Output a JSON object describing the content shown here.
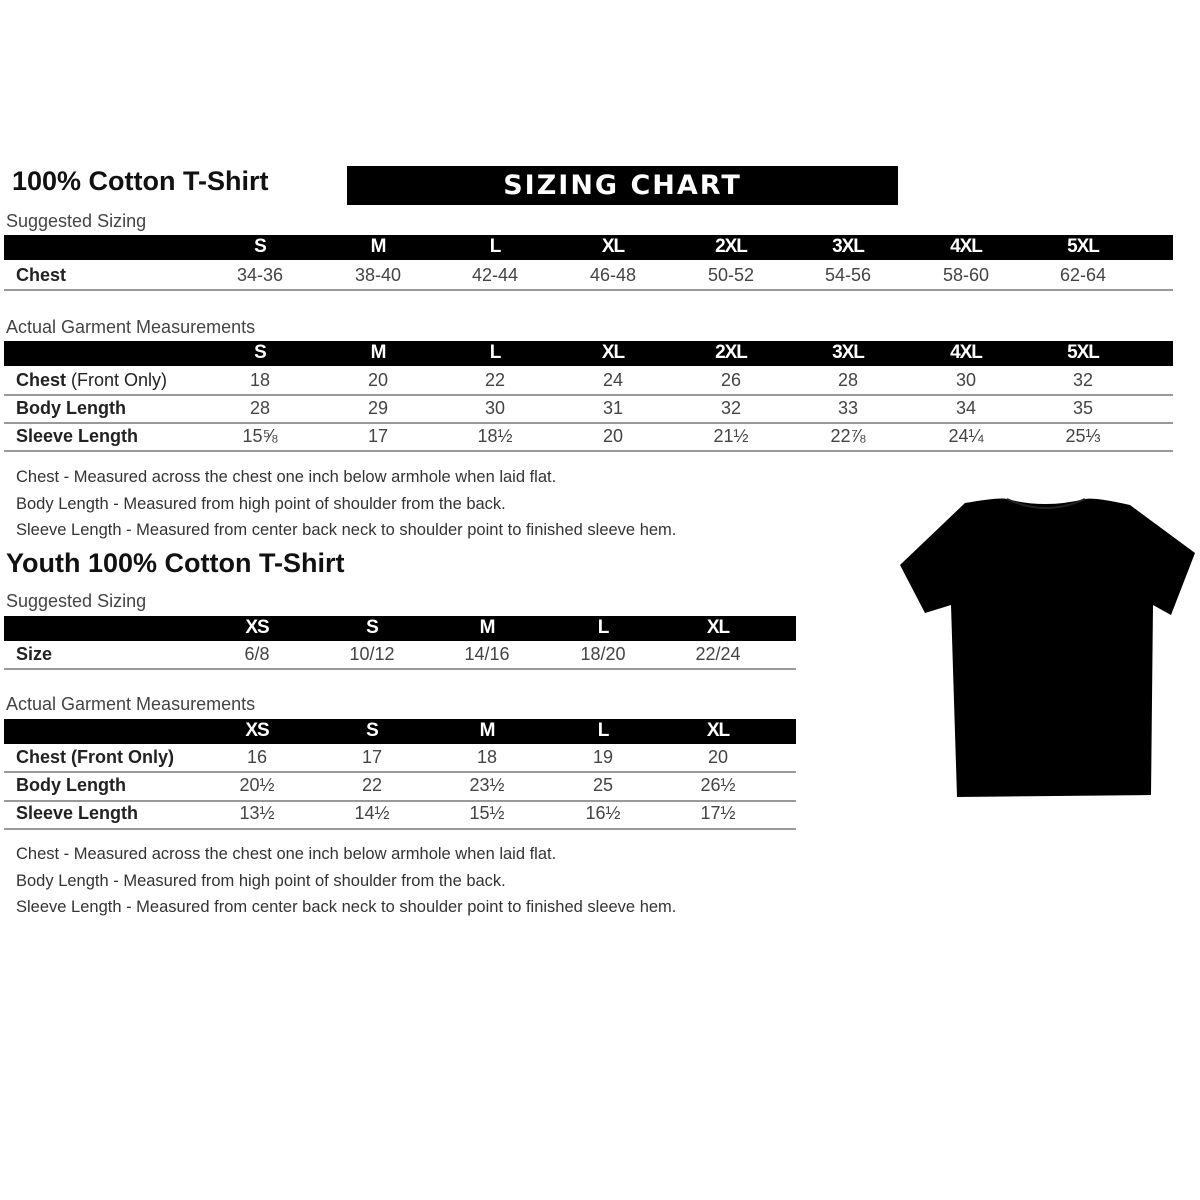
{
  "adult": {
    "title": "100% Cotton T-Shirt",
    "banner": "SIZING CHART",
    "suggested": {
      "label": "Suggested Sizing",
      "sizes": [
        "S",
        "M",
        "L",
        "XL",
        "2XL",
        "3XL",
        "4XL",
        "5XL"
      ],
      "rows": [
        {
          "label": "Chest",
          "values": [
            "34-36",
            "38-40",
            "42-44",
            "46-48",
            "50-52",
            "54-56",
            "58-60",
            "62-64"
          ]
        }
      ]
    },
    "actual": {
      "label": "Actual Garment Measurements",
      "sizes": [
        "S",
        "M",
        "L",
        "XL",
        "2XL",
        "3XL",
        "4XL",
        "5XL"
      ],
      "rows": [
        {
          "label": "Chest",
          "label_suffix": " (Front Only)",
          "values": [
            "18",
            "20",
            "22",
            "24",
            "26",
            "28",
            "30",
            "32"
          ]
        },
        {
          "label": "Body Length",
          "label_suffix": "",
          "values": [
            "28",
            "29",
            "30",
            "31",
            "32",
            "33",
            "34",
            "35"
          ]
        },
        {
          "label": "Sleeve Length",
          "label_suffix": "",
          "values": [
            "15⅝",
            "17",
            "18½",
            "20",
            "21½",
            "22⅞",
            "24¼",
            "25⅓"
          ]
        }
      ]
    },
    "notes": [
      "Chest - Measured across the chest one inch below armhole when laid flat.",
      "Body Length - Measured from high point of shoulder from the back.",
      "Sleeve Length - Measured from center back neck to shoulder point to finished sleeve hem."
    ]
  },
  "youth": {
    "title": "Youth 100% Cotton T-Shirt",
    "suggested": {
      "label": "Suggested Sizing",
      "sizes": [
        "XS",
        "S",
        "M",
        "L",
        "XL"
      ],
      "rows": [
        {
          "label": "Size",
          "values": [
            "6/8",
            "10/12",
            "14/16",
            "18/20",
            "22/24"
          ]
        }
      ]
    },
    "actual": {
      "label": "Actual Garment Measurements",
      "sizes": [
        "XS",
        "S",
        "M",
        "L",
        "XL"
      ],
      "rows": [
        {
          "label": "Chest (Front Only)",
          "values": [
            "16",
            "17",
            "18",
            "19",
            "20"
          ]
        },
        {
          "label": "Body Length",
          "values": [
            "20½",
            "22",
            "23½",
            "25",
            "26½"
          ]
        },
        {
          "label": "Sleeve Length",
          "values": [
            "13½",
            "14½",
            "15½",
            "16½",
            "17½"
          ]
        }
      ]
    },
    "notes": [
      "Chest - Measured across the chest one inch below armhole when laid flat.",
      "Body Length - Measured from high point of shoulder from the back.",
      "Sleeve Length - Measured from center back neck to shoulder point to finished sleeve hem."
    ]
  },
  "image": {
    "icon": "t-shirt-icon",
    "color": "#000000"
  }
}
